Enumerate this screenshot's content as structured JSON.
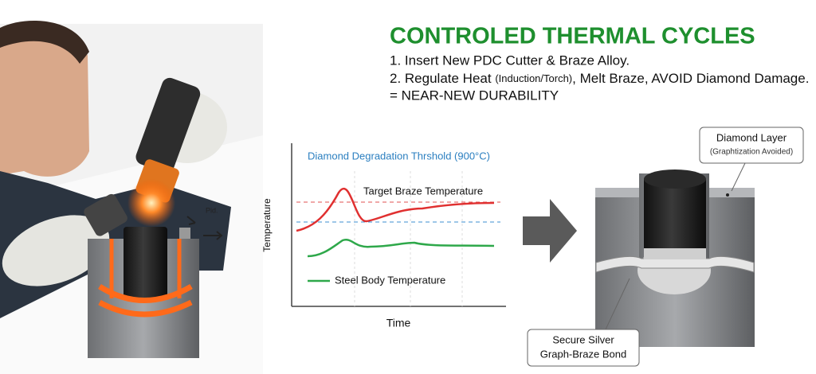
{
  "header": {
    "title": "CONTROLED THERMAL CYCLES",
    "step_1": "1. Insert New PDC Cutter & Braze Alloy.",
    "step_2": {
      "main": "2. Regulate Heat ",
      "note": "(Induction/Torch)",
      "rest": ", Melt Braze, AVOID Diamond Damage."
    },
    "result": "= NEAR-NEW DURABILITY"
  },
  "photo": {
    "label": "Pid."
  },
  "graph": {
    "threshold": "Diamond Degradation Thrshold (900°C)",
    "target": "Target Braze Temperature",
    "steel": "Steel Body Temperature",
    "y_label": "Temperature",
    "x_label": "Time"
  },
  "cutter": {
    "diamond_title": "Diamond Layer",
    "diamond_note": "(Graphtization Avoided)",
    "bond_line_1": "Secure Silver",
    "bond_line_2": "Graph-Braze Bond"
  }
}
